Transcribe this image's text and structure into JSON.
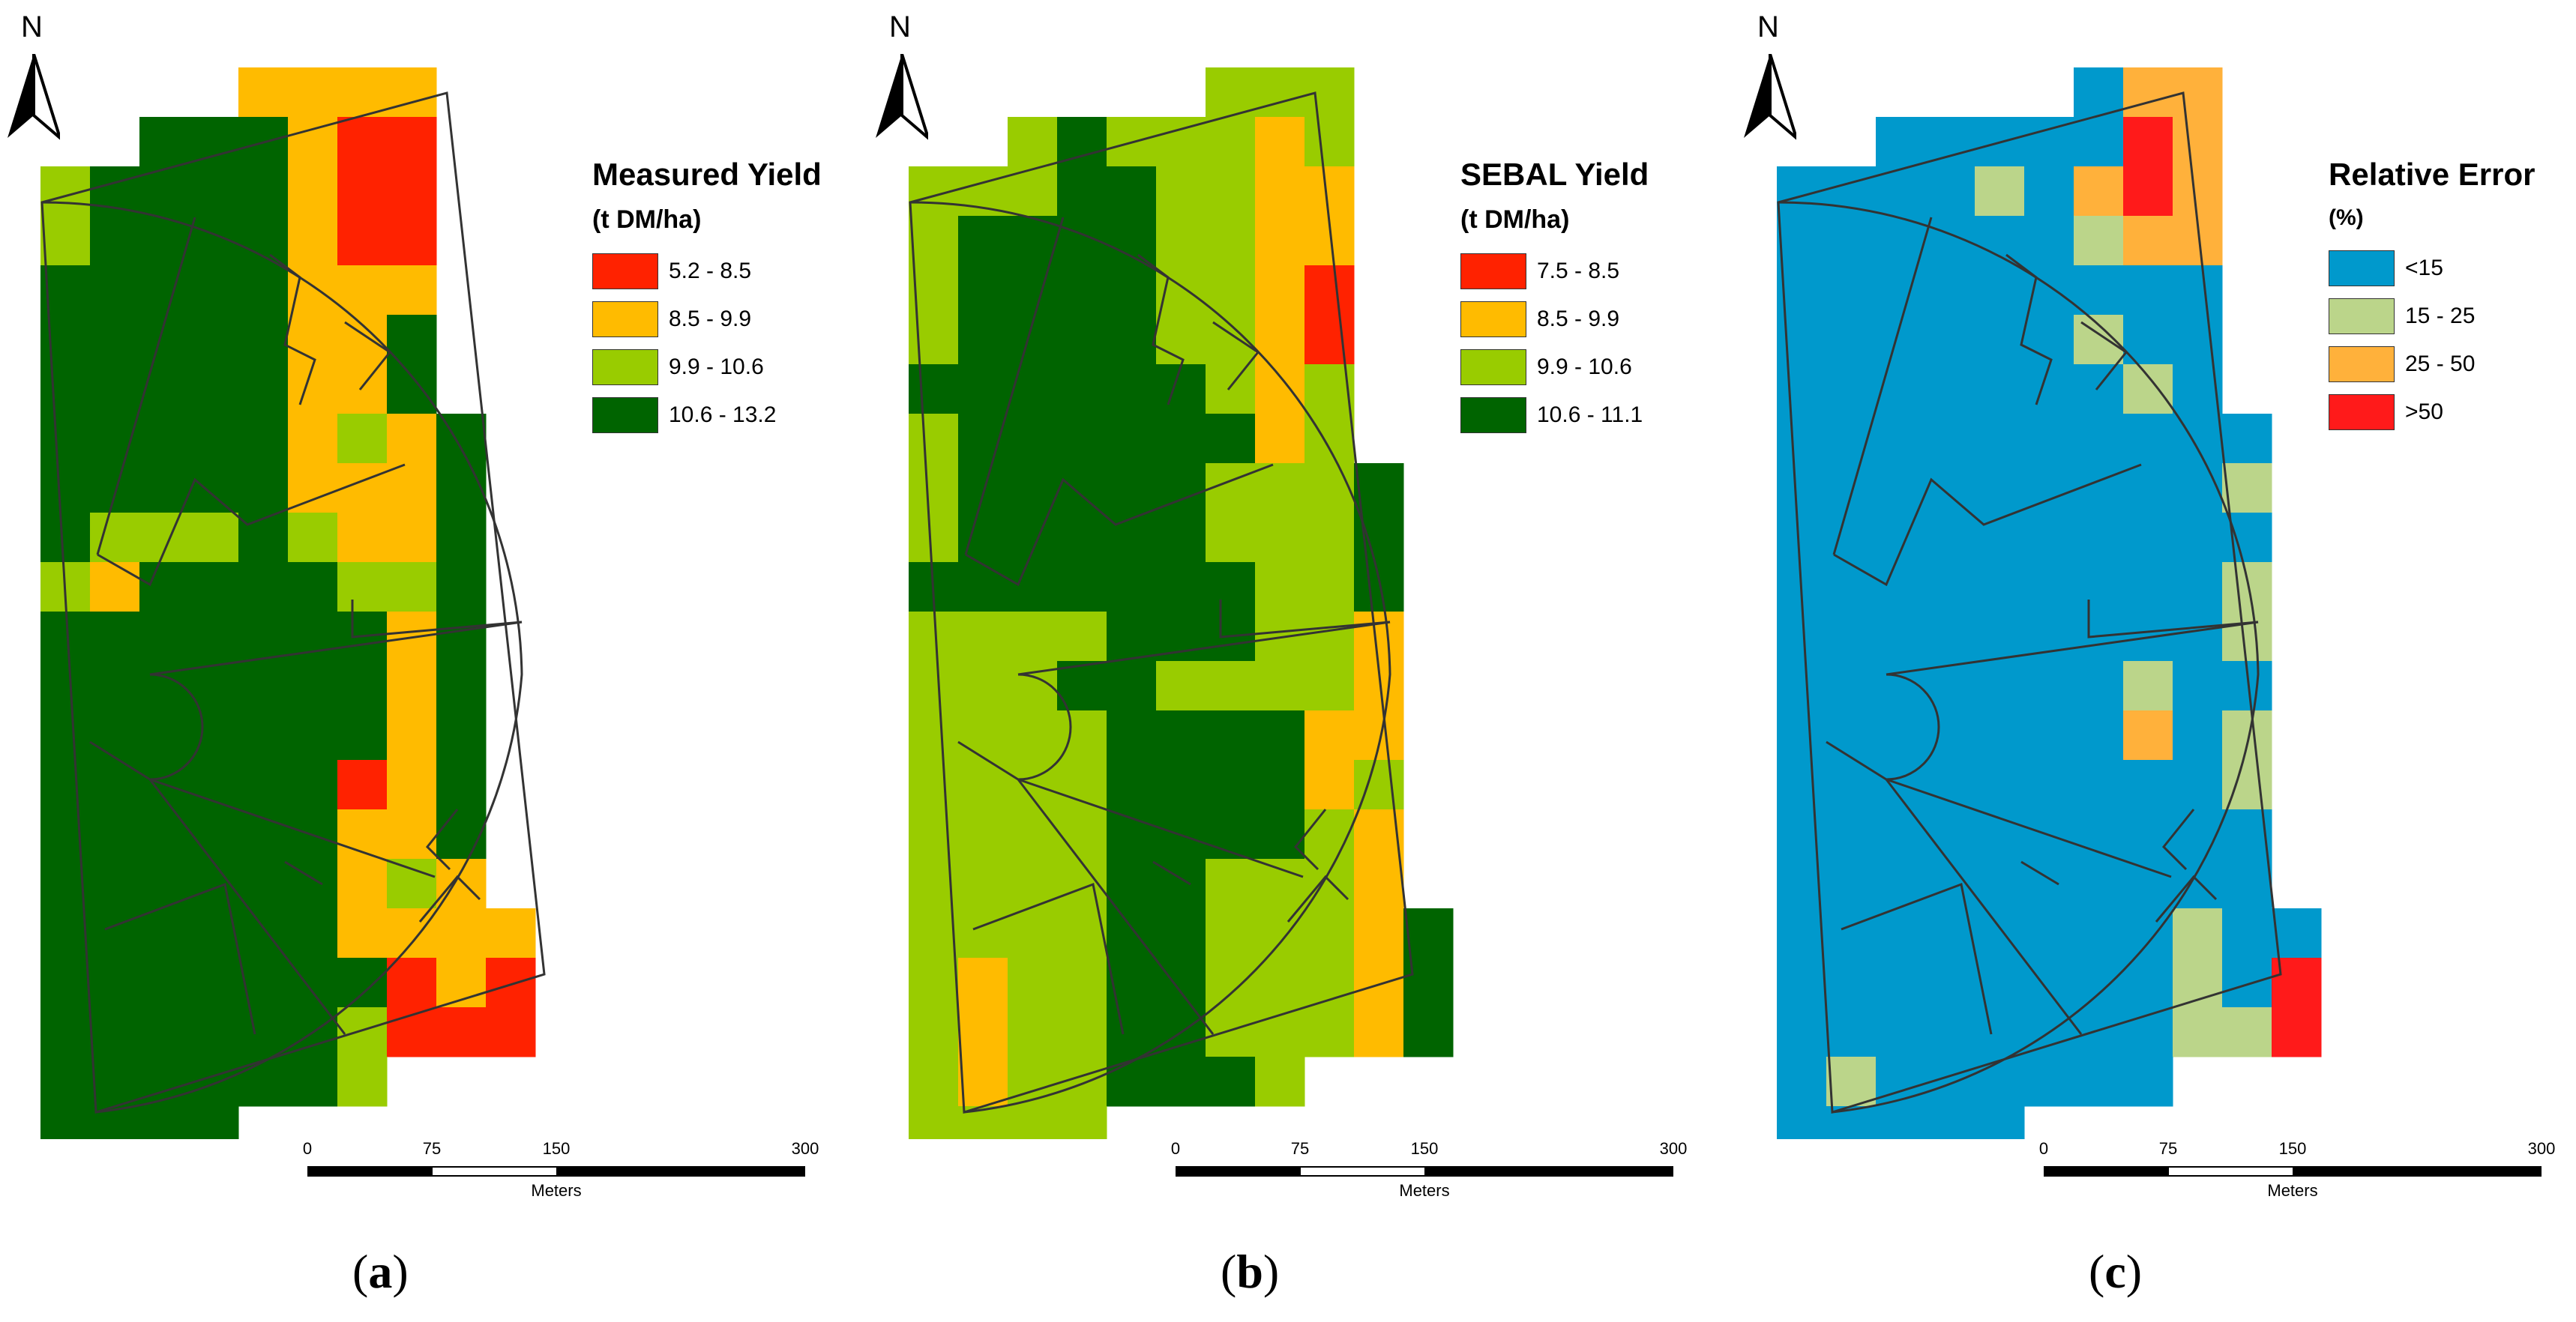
{
  "north_label": "N",
  "scale": {
    "ticks": [
      "0",
      "75",
      "150",
      "300"
    ],
    "unit": "Meters"
  },
  "panels": [
    {
      "id": "a",
      "caption_letter": "a",
      "legend_title": "Measured Yield",
      "legend_unit": "(t DM/ha)",
      "legend": [
        {
          "label": "5.2 - 8.5",
          "color": "#ff2200"
        },
        {
          "label": "8.5 - 9.9",
          "color": "#ffbb00"
        },
        {
          "label": "9.9 - 10.6",
          "color": "#99cc00"
        },
        {
          "label": "10.6 - 13.2",
          "color": "#006400"
        }
      ],
      "grid": [
        "....WWWW..",
        "..DDDWXX..",
        "ZDDDDWXX..",
        "ZDDDDWXX..",
        "DDDDDWWW..",
        "DDDDDWWD..",
        "DDDDDWWD..",
        "DDDDDWZWD.",
        "DDDDDWWWD.",
        "DZZZDZWWD.",
        "ZWDDDDZZD.",
        "DDDDDDDWD.",
        "DDDDDDDWD.",
        "DDDDDDDWD.",
        "DDDDDDXWD.",
        "DDDDDDWWD.",
        "DDDDDDWZW.",
        "DDDDDDWWWW",
        "DDDDDDDXWX",
        "DDDDDDZXXX",
        "DDDDDDZ...",
        "DDDD......"
      ]
    },
    {
      "id": "b",
      "caption_letter": "b",
      "legend_title": "SEBAL Yield",
      "legend_unit": "(t DM/ha)",
      "legend": [
        {
          "label": "7.5 - 8.5",
          "color": "#ff2200"
        },
        {
          "label": "8.5 - 9.9",
          "color": "#ffbb00"
        },
        {
          "label": "9.9 - 10.6",
          "color": "#99cc00"
        },
        {
          "label": "10.6 - 11.1",
          "color": "#006400"
        }
      ],
      "grid": [
        "......ZZZ.",
        "..ZDZZZWZ.",
        "ZZZDDZZWW.",
        "ZDDDDZZWW.",
        "ZDDDDZZWX.",
        "ZDDDDZZWX.",
        "DDDDDDZWZ.",
        "ZDDDDDDWZ.",
        "ZDDDDDZZZD",
        "ZDDDDDZZZD",
        "DDDDDDDZZD",
        "ZZZZDDDZZW",
        "ZZZDDZZZZW",
        "ZZZZDDDDWW",
        "ZZZZDDDDWZ",
        "ZZZZDDDDZW",
        "ZZZZDDZZZW",
        "ZZZZDDZZZWD",
        "ZWZZDDZZZWD",
        "ZWZZDDZZZWD",
        "ZWZZDDDZ...",
        "ZZZZ......"
      ]
    },
    {
      "id": "c",
      "caption_letter": "c",
      "legend_title": "Relative Error",
      "legend_unit": "(%)",
      "legend": [
        {
          "label": "<15",
          "color": "#0099cc"
        },
        {
          "label": "15 - 25",
          "color": "#bbd58a"
        },
        {
          "label": "25 - 50",
          "color": "#ffb13b"
        },
        {
          "label": ">50",
          "color": "#ff1a1a"
        }
      ],
      "grid": [
        "......BOO.",
        "..BBBBBXO.",
        "BBBBGBOXO.",
        "BBBBBBGOO.",
        "BBBBBBBBB.",
        "BBBBBBGBB.",
        "BBBBBBBGB.",
        "BBBBBBBBBB",
        "BBBBBBBBBG",
        "BBBBBBBBBB",
        "BBBBBBBBBG",
        "BBBBBBBBBG",
        "BBBBBBBGBB",
        "BBBBBBBOBG",
        "BBBBBBBBBG",
        "BBBBBBBBBB",
        "BBBBBBBBBB",
        "BBBBBBBBGBB",
        "BBBBBBBBGBX",
        "BBBBBBBBGGX",
        "BGBBBBBB...",
        "BBBBB......"
      ]
    }
  ]
}
